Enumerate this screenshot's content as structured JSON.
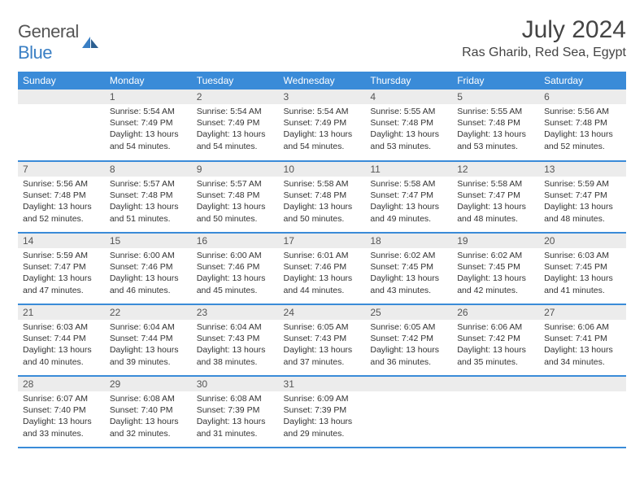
{
  "brand": {
    "text1": "General",
    "text2": "Blue"
  },
  "title": "July 2024",
  "location": "Ras Gharib, Red Sea, Egypt",
  "colors": {
    "header_bg": "#3a8bd8",
    "header_text": "#ffffff",
    "daynum_bg": "#ececec",
    "border": "#3a8bd8",
    "logo_blue": "#3a7fc4",
    "text": "#333333"
  },
  "weekdays": [
    "Sunday",
    "Monday",
    "Tuesday",
    "Wednesday",
    "Thursday",
    "Friday",
    "Saturday"
  ],
  "weeks": [
    [
      {
        "n": "",
        "sr": "",
        "ss": "",
        "dl": ""
      },
      {
        "n": "1",
        "sr": "5:54 AM",
        "ss": "7:49 PM",
        "dl": "13 hours and 54 minutes."
      },
      {
        "n": "2",
        "sr": "5:54 AM",
        "ss": "7:49 PM",
        "dl": "13 hours and 54 minutes."
      },
      {
        "n": "3",
        "sr": "5:54 AM",
        "ss": "7:49 PM",
        "dl": "13 hours and 54 minutes."
      },
      {
        "n": "4",
        "sr": "5:55 AM",
        "ss": "7:48 PM",
        "dl": "13 hours and 53 minutes."
      },
      {
        "n": "5",
        "sr": "5:55 AM",
        "ss": "7:48 PM",
        "dl": "13 hours and 53 minutes."
      },
      {
        "n": "6",
        "sr": "5:56 AM",
        "ss": "7:48 PM",
        "dl": "13 hours and 52 minutes."
      }
    ],
    [
      {
        "n": "7",
        "sr": "5:56 AM",
        "ss": "7:48 PM",
        "dl": "13 hours and 52 minutes."
      },
      {
        "n": "8",
        "sr": "5:57 AM",
        "ss": "7:48 PM",
        "dl": "13 hours and 51 minutes."
      },
      {
        "n": "9",
        "sr": "5:57 AM",
        "ss": "7:48 PM",
        "dl": "13 hours and 50 minutes."
      },
      {
        "n": "10",
        "sr": "5:58 AM",
        "ss": "7:48 PM",
        "dl": "13 hours and 50 minutes."
      },
      {
        "n": "11",
        "sr": "5:58 AM",
        "ss": "7:47 PM",
        "dl": "13 hours and 49 minutes."
      },
      {
        "n": "12",
        "sr": "5:58 AM",
        "ss": "7:47 PM",
        "dl": "13 hours and 48 minutes."
      },
      {
        "n": "13",
        "sr": "5:59 AM",
        "ss": "7:47 PM",
        "dl": "13 hours and 48 minutes."
      }
    ],
    [
      {
        "n": "14",
        "sr": "5:59 AM",
        "ss": "7:47 PM",
        "dl": "13 hours and 47 minutes."
      },
      {
        "n": "15",
        "sr": "6:00 AM",
        "ss": "7:46 PM",
        "dl": "13 hours and 46 minutes."
      },
      {
        "n": "16",
        "sr": "6:00 AM",
        "ss": "7:46 PM",
        "dl": "13 hours and 45 minutes."
      },
      {
        "n": "17",
        "sr": "6:01 AM",
        "ss": "7:46 PM",
        "dl": "13 hours and 44 minutes."
      },
      {
        "n": "18",
        "sr": "6:02 AM",
        "ss": "7:45 PM",
        "dl": "13 hours and 43 minutes."
      },
      {
        "n": "19",
        "sr": "6:02 AM",
        "ss": "7:45 PM",
        "dl": "13 hours and 42 minutes."
      },
      {
        "n": "20",
        "sr": "6:03 AM",
        "ss": "7:45 PM",
        "dl": "13 hours and 41 minutes."
      }
    ],
    [
      {
        "n": "21",
        "sr": "6:03 AM",
        "ss": "7:44 PM",
        "dl": "13 hours and 40 minutes."
      },
      {
        "n": "22",
        "sr": "6:04 AM",
        "ss": "7:44 PM",
        "dl": "13 hours and 39 minutes."
      },
      {
        "n": "23",
        "sr": "6:04 AM",
        "ss": "7:43 PM",
        "dl": "13 hours and 38 minutes."
      },
      {
        "n": "24",
        "sr": "6:05 AM",
        "ss": "7:43 PM",
        "dl": "13 hours and 37 minutes."
      },
      {
        "n": "25",
        "sr": "6:05 AM",
        "ss": "7:42 PM",
        "dl": "13 hours and 36 minutes."
      },
      {
        "n": "26",
        "sr": "6:06 AM",
        "ss": "7:42 PM",
        "dl": "13 hours and 35 minutes."
      },
      {
        "n": "27",
        "sr": "6:06 AM",
        "ss": "7:41 PM",
        "dl": "13 hours and 34 minutes."
      }
    ],
    [
      {
        "n": "28",
        "sr": "6:07 AM",
        "ss": "7:40 PM",
        "dl": "13 hours and 33 minutes."
      },
      {
        "n": "29",
        "sr": "6:08 AM",
        "ss": "7:40 PM",
        "dl": "13 hours and 32 minutes."
      },
      {
        "n": "30",
        "sr": "6:08 AM",
        "ss": "7:39 PM",
        "dl": "13 hours and 31 minutes."
      },
      {
        "n": "31",
        "sr": "6:09 AM",
        "ss": "7:39 PM",
        "dl": "13 hours and 29 minutes."
      },
      {
        "n": "",
        "sr": "",
        "ss": "",
        "dl": ""
      },
      {
        "n": "",
        "sr": "",
        "ss": "",
        "dl": ""
      },
      {
        "n": "",
        "sr": "",
        "ss": "",
        "dl": ""
      }
    ]
  ],
  "labels": {
    "sunrise": "Sunrise: ",
    "sunset": "Sunset: ",
    "daylight": "Daylight: "
  }
}
